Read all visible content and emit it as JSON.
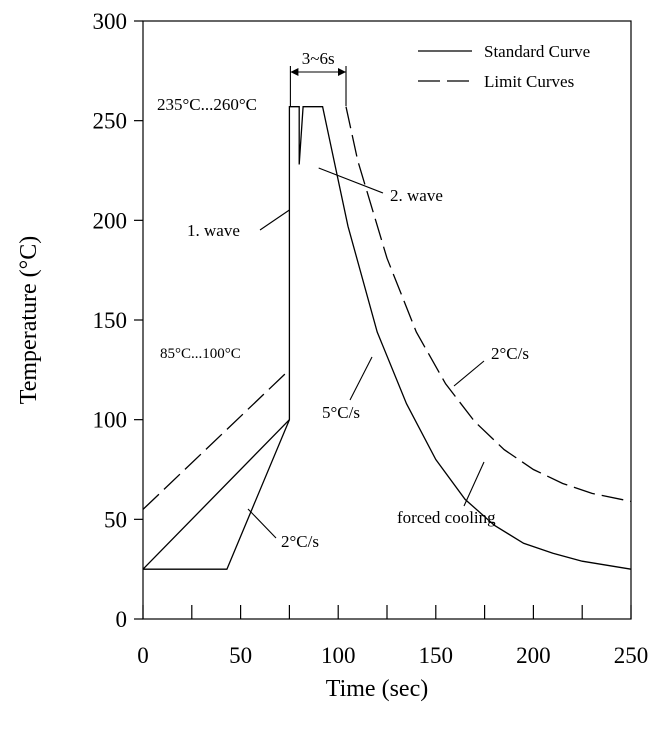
{
  "chart_data": {
    "type": "line",
    "xlabel": "Time (sec)",
    "ylabel": "Temperature (°C)",
    "xlim": [
      0,
      250
    ],
    "ylim": [
      0,
      300
    ],
    "xticks": [
      0,
      50,
      100,
      150,
      200,
      250
    ],
    "xminor": [
      25,
      75,
      125,
      175,
      225
    ],
    "yticks": [
      0,
      50,
      100,
      150,
      200,
      250,
      300
    ],
    "grid": false,
    "legend_position": "top-right",
    "legend": [
      {
        "label": "Standard Curve",
        "style": "solid"
      },
      {
        "label": "Limit Curves",
        "style": "dashed"
      }
    ],
    "series": [
      {
        "name": "Standard Curve",
        "style": "solid",
        "points": [
          [
            0,
            25
          ],
          [
            43,
            25
          ],
          [
            75,
            100
          ],
          [
            75,
            257
          ],
          [
            80,
            257
          ],
          [
            80,
            228
          ],
          [
            82,
            257
          ],
          [
            92,
            257
          ],
          [
            105,
            197
          ],
          [
            120,
            144
          ],
          [
            135,
            108
          ],
          [
            150,
            80
          ],
          [
            165,
            60
          ],
          [
            180,
            47
          ],
          [
            195,
            38
          ],
          [
            210,
            33
          ],
          [
            225,
            29
          ],
          [
            250,
            25
          ]
        ]
      },
      {
        "name": "Limit Curves",
        "style": "dashed",
        "points": [
          [
            0,
            55
          ],
          [
            75,
            125
          ]
        ]
      },
      {
        "name": "Limit Curves",
        "style": "dashed",
        "points": [
          [
            104,
            257
          ],
          [
            110,
            230
          ],
          [
            125,
            181
          ],
          [
            140,
            144
          ],
          [
            155,
            118
          ],
          [
            170,
            99
          ],
          [
            185,
            85
          ],
          [
            200,
            75
          ],
          [
            215,
            68
          ],
          [
            230,
            63
          ],
          [
            250,
            59
          ]
        ]
      },
      {
        "style": "solid",
        "points": [
          [
            0,
            25
          ],
          [
            75,
            100
          ]
        ]
      }
    ],
    "annotations": [
      {
        "text": "235°C...260°C"
      },
      {
        "text": "3~6s"
      },
      {
        "text": "1. wave"
      },
      {
        "text": "2. wave"
      },
      {
        "text": "85°C...100°C"
      },
      {
        "text": "5°C/s"
      },
      {
        "text": "2°C/s"
      },
      {
        "text": "2°C/s"
      },
      {
        "text": "forced cooling"
      }
    ]
  }
}
